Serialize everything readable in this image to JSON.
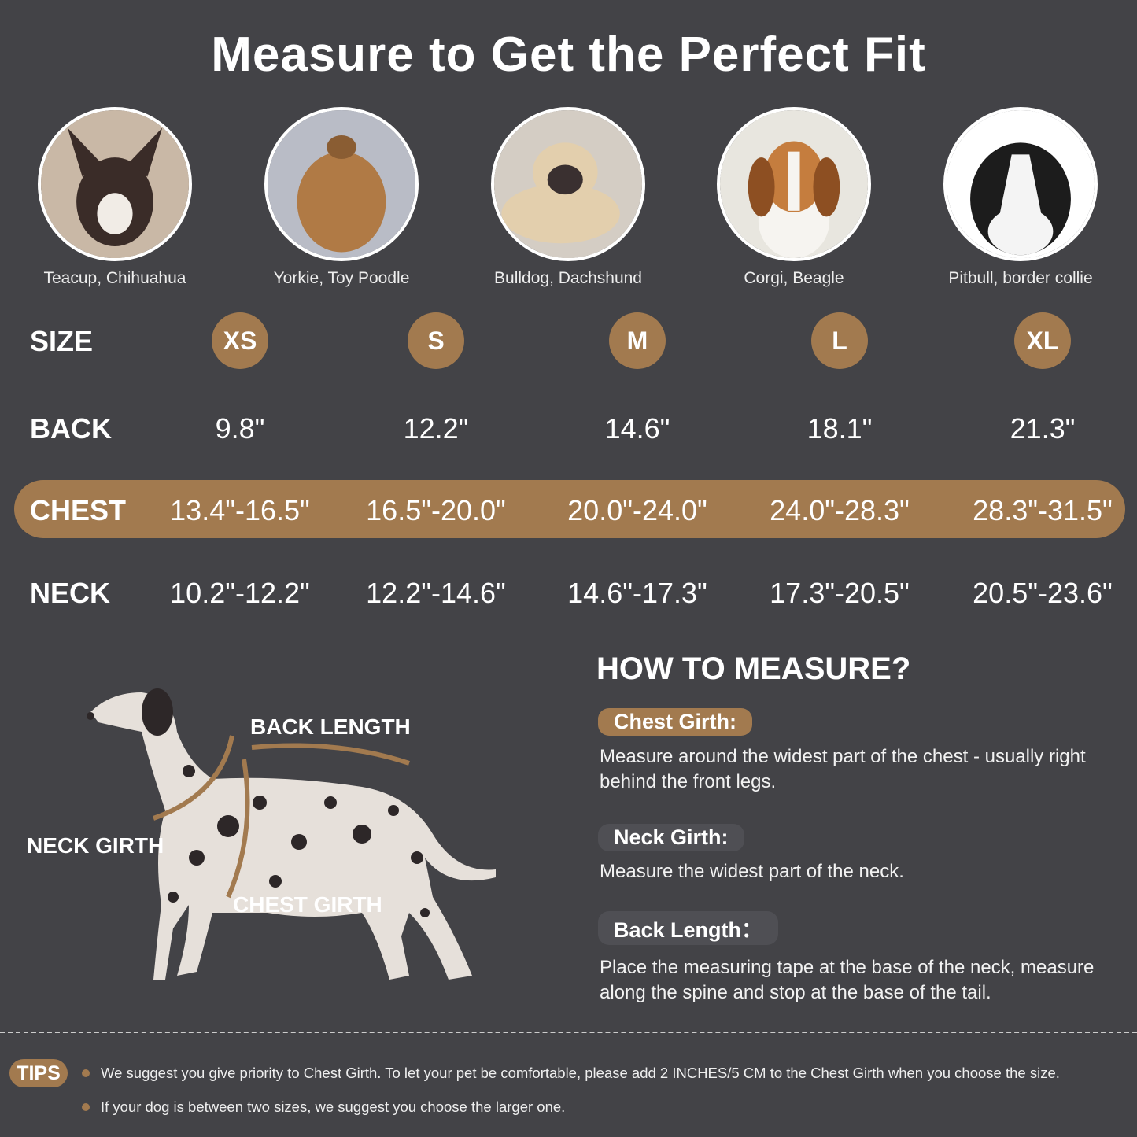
{
  "title": "Measure to Get the Perfect Fit",
  "breeds": [
    "Teacup, Chihuahua",
    "Yorkie, Toy Poodle",
    "Bulldog, Dachshund",
    "Corgi, Beagle",
    "Pitbull, border collie"
  ],
  "rows": {
    "size": {
      "label": "SIZE",
      "values": [
        "XS",
        "S",
        "M",
        "L",
        "XL"
      ]
    },
    "back": {
      "label": "BACK",
      "values": [
        "9.8\"",
        "12.2\"",
        "14.6\"",
        "18.1\"",
        "21.3\""
      ]
    },
    "chest": {
      "label": "CHEST",
      "values": [
        "13.4\"-16.5\"",
        "16.5\"-20.0\"",
        "20.0\"-24.0\"",
        "24.0\"-28.3\"",
        "28.3\"-31.5\""
      ]
    },
    "neck": {
      "label": "NECK",
      "values": [
        "10.2\"-12.2\"",
        "12.2\"-14.6\"",
        "14.6\"-17.3\"",
        "17.3\"-20.5\"",
        "20.5\"-23.6\""
      ]
    }
  },
  "diagram": {
    "back_length": "BACK LENGTH",
    "neck_girth": "NECK GIRTH",
    "chest_girth": "CHEST GIRTH"
  },
  "howto": {
    "title": "HOW TO MEASURE?",
    "items": [
      {
        "label": "Chest Girth:",
        "text": "Measure around the widest part of the chest - usually right behind the front legs."
      },
      {
        "label": "Neck Girth:",
        "text": "Measure the widest part of the neck."
      },
      {
        "label": "Back Length：",
        "text": "Place the measuring tape at the base of the neck, measure along the spine and stop at the base of the tail."
      }
    ]
  },
  "tips": {
    "label": "TIPS",
    "items": [
      "We suggest you give priority to Chest Girth. To let your pet be comfortable, please add 2 INCHES/5 CM to the Chest Girth when you choose the size.",
      "If your dog is between two sizes, we suggest you choose the larger one."
    ]
  },
  "colors": {
    "background": "#434347",
    "accent": "#a27a4f"
  }
}
